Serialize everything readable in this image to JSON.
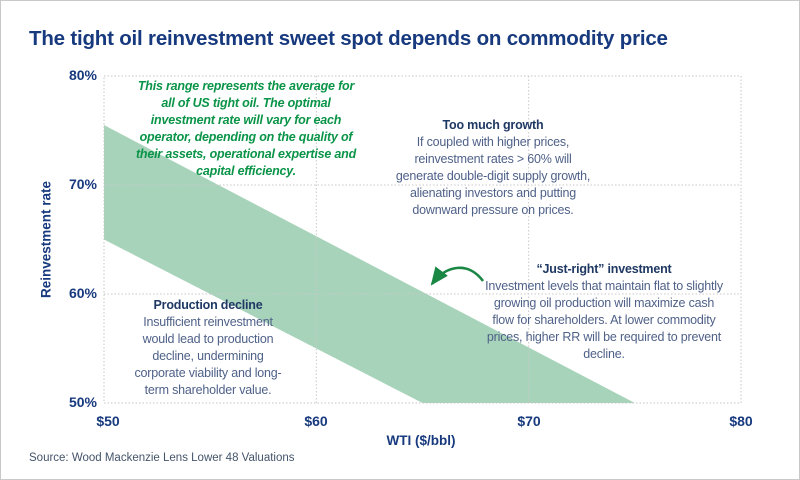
{
  "chart_data": {
    "type": "area",
    "title": "The tight oil reinvestment sweet spot depends on commodity price",
    "xlabel": "WTI ($/bbl)",
    "ylabel": "Reinvestment rate",
    "xlim": [
      50,
      80
    ],
    "ylim": [
      50,
      80
    ],
    "x_tick_labels": [
      "$50",
      "$60",
      "$70",
      "$80"
    ],
    "x_tick_values": [
      50,
      60,
      70,
      80
    ],
    "y_tick_labels": [
      "80%",
      "70%",
      "60%",
      "50%"
    ],
    "y_tick_values": [
      80,
      70,
      60,
      50
    ],
    "x_gridlines": [
      60,
      70
    ],
    "y_gridlines": [
      60,
      70
    ],
    "grid": "dotted",
    "legend": "none",
    "series": [
      {
        "name": "sweet_spot_band_top_edge",
        "x": [
          50,
          75
        ],
        "y": [
          75.5,
          50
        ]
      },
      {
        "name": "sweet_spot_band_bottom_edge",
        "x": [
          50,
          65
        ],
        "y": [
          65,
          50
        ]
      }
    ],
    "band_fill": "#a8d3bb"
  },
  "annotations": {
    "range_note": {
      "lines": [
        "This range represents the average for",
        "all of US tight oil. The optimal",
        "investment rate will vary for each",
        "operator, depending on the quality of",
        "their assets, operational expertise and",
        "capital efficiency."
      ]
    },
    "too_much_growth": {
      "title": "Too much growth",
      "lines": [
        "If coupled with higher prices,",
        "reinvestment rates > 60% will",
        "generate double-digit supply growth,",
        "alienating investors and putting",
        "downward pressure on prices."
      ]
    },
    "just_right": {
      "title": "“Just-right” investment",
      "lines": [
        "Investment levels that maintain flat to slightly",
        "growing oil production will maximize cash",
        "flow for shareholders. At lower commodity",
        "prices, higher RR will be required to prevent",
        "decline."
      ]
    },
    "production_decline": {
      "title": "Production decline",
      "lines": [
        "Insufficient reinvestment",
        "would lead to production",
        "decline, undermining",
        "corporate viability and long-",
        "term shareholder value."
      ]
    }
  },
  "source": "Source: Wood Mackenzie Lens Lower 48 Valuations",
  "colors": {
    "title_navy": "#17397e",
    "heading_navy": "#1f3864",
    "body_slate": "#4f6189",
    "green_text": "#0a9448",
    "band_green": "#a8d3bb",
    "arrow_green": "#1b8745",
    "grid_gray": "#c8c8c8",
    "source_slate": "#44546a"
  }
}
